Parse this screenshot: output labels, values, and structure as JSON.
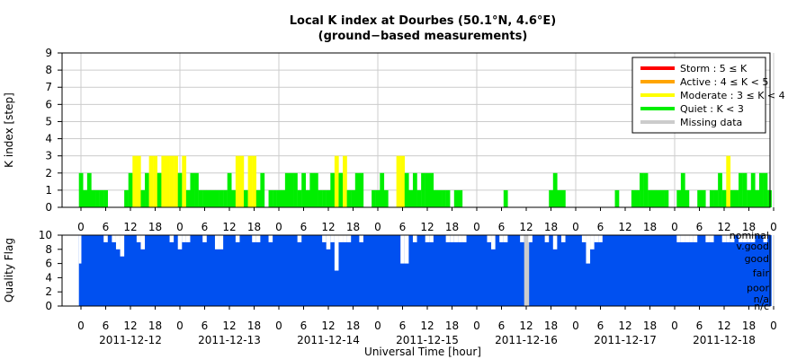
{
  "chart_data": [
    {
      "type": "bar",
      "title": "Local K index at Dourbes (50.1°N, 4.6°E)",
      "subtitle": "(ground−based measurements)",
      "ylabel": "K index [step]",
      "ylim": [
        0,
        9
      ],
      "yticks": [
        "0",
        "1",
        "2",
        "3",
        "4",
        "5",
        "6",
        "7",
        "8",
        "9"
      ],
      "x_tick_labels": [
        "0",
        "6",
        "12",
        "18",
        "0",
        "6",
        "12",
        "18",
        "0",
        "6",
        "12",
        "18",
        "0",
        "6",
        "12",
        "18",
        "0",
        "6",
        "12",
        "18",
        "0",
        "6",
        "12",
        "18",
        "0",
        "6",
        "12",
        "18",
        "0"
      ],
      "grid": true,
      "legend_position": "top-right",
      "legend": [
        {
          "label": "Storm : 5 ≤ K",
          "color": "#ff0000"
        },
        {
          "label": "Active : 4 ≤ K < 5",
          "color": "#ffa500"
        },
        {
          "label": "Moderate : 3 ≤ K < 4",
          "color": "#ffff00"
        },
        {
          "label": "Quiet : K < 3",
          "color": "#00ee00"
        },
        {
          "label": "Missing data",
          "color": "#cccccc"
        }
      ],
      "bar_width_hours": 1,
      "start_date": "2011-12-12",
      "hourly_values": [
        2,
        1,
        2,
        1,
        1,
        1,
        1,
        0,
        0,
        0,
        0,
        1,
        2,
        3,
        3,
        1,
        2,
        3,
        3,
        2,
        3,
        3,
        3,
        3,
        2,
        3,
        1,
        2,
        2,
        1,
        1,
        1,
        1,
        1,
        1,
        1,
        2,
        1,
        3,
        3,
        1,
        3,
        3,
        1,
        2,
        0,
        1,
        1,
        1,
        1,
        2,
        2,
        2,
        1,
        2,
        1,
        2,
        2,
        1,
        1,
        1,
        2,
        3,
        2,
        3,
        1,
        1,
        2,
        2,
        0,
        0,
        1,
        1,
        2,
        1,
        0,
        0,
        3,
        3,
        2,
        1,
        2,
        1,
        2,
        2,
        2,
        1,
        1,
        1,
        1,
        0,
        1,
        1,
        0,
        0,
        0,
        0,
        0,
        0,
        0,
        0,
        0,
        0,
        1,
        0,
        0,
        0,
        0,
        0,
        0,
        0,
        0,
        0,
        0,
        1,
        2,
        1,
        1,
        0,
        0,
        0,
        0,
        0,
        0,
        0,
        0,
        0,
        0,
        0,
        0,
        1,
        0,
        0,
        0,
        1,
        1,
        2,
        2,
        1,
        1,
        1,
        1,
        1,
        0,
        0,
        1,
        2,
        1,
        0,
        0,
        1,
        1,
        0,
        1,
        1,
        2,
        1,
        3,
        1,
        1,
        2,
        2,
        1,
        2,
        1,
        2,
        2,
        1
      ]
    },
    {
      "type": "area",
      "ylabel": "Quality Flag",
      "ylim": [
        0,
        10
      ],
      "yticks": [
        "0",
        "2",
        "4",
        "6",
        "8",
        "10"
      ],
      "category_labels": [
        "nominal",
        "v.good",
        "good",
        "fair",
        "poor",
        "n/a",
        "n/c"
      ],
      "fill_color": "#0050f0",
      "missing_color": "#cccccc",
      "xlabel": "Universal Time [hour]",
      "date_labels": [
        "2011-12-12",
        "2011-12-13",
        "2011-12-14",
        "2011-12-15",
        "2011-12-16",
        "2011-12-17",
        "2011-12-18"
      ],
      "x_tick_labels": [
        "0",
        "6",
        "12",
        "18",
        "0",
        "6",
        "12",
        "18",
        "0",
        "6",
        "12",
        "18",
        "0",
        "6",
        "12",
        "18",
        "0",
        "6",
        "12",
        "18",
        "0",
        "6",
        "12",
        "18",
        "0",
        "6",
        "12",
        "18",
        "0"
      ],
      "dips": [
        {
          "day": 0,
          "hour": 0,
          "value": 6,
          "width_hours": 0.6
        },
        {
          "day": 0,
          "hour": 6,
          "value": 9
        },
        {
          "day": 0,
          "hour": 8,
          "value": 9
        },
        {
          "day": 0,
          "hour": 9,
          "value": 8
        },
        {
          "day": 0,
          "hour": 10,
          "value": 7
        },
        {
          "day": 0,
          "hour": 14,
          "value": 9
        },
        {
          "day": 0,
          "hour": 15,
          "value": 8
        },
        {
          "day": 0,
          "hour": 22,
          "value": 9
        },
        {
          "day": 1,
          "hour": 0,
          "value": 8
        },
        {
          "day": 1,
          "hour": 1,
          "value": 9
        },
        {
          "day": 1,
          "hour": 2,
          "value": 9
        },
        {
          "day": 1,
          "hour": 6,
          "value": 9
        },
        {
          "day": 1,
          "hour": 9,
          "value": 8
        },
        {
          "day": 1,
          "hour": 10,
          "value": 8
        },
        {
          "day": 1,
          "hour": 14,
          "value": 9
        },
        {
          "day": 1,
          "hour": 18,
          "value": 9
        },
        {
          "day": 1,
          "hour": 19,
          "value": 9
        },
        {
          "day": 1,
          "hour": 22,
          "value": 9
        },
        {
          "day": 2,
          "hour": 5,
          "value": 9
        },
        {
          "day": 2,
          "hour": 11,
          "value": 9
        },
        {
          "day": 2,
          "hour": 12,
          "value": 8
        },
        {
          "day": 2,
          "hour": 13,
          "value": 9
        },
        {
          "day": 2,
          "hour": 14,
          "value": 5
        },
        {
          "day": 2,
          "hour": 15,
          "value": 9
        },
        {
          "day": 2,
          "hour": 16,
          "value": 9
        },
        {
          "day": 2,
          "hour": 17,
          "value": 9
        },
        {
          "day": 2,
          "hour": 20,
          "value": 9
        },
        {
          "day": 3,
          "hour": 6,
          "value": 6
        },
        {
          "day": 3,
          "hour": 7,
          "value": 6
        },
        {
          "day": 3,
          "hour": 9,
          "value": 9
        },
        {
          "day": 3,
          "hour": 12,
          "value": 9
        },
        {
          "day": 3,
          "hour": 13,
          "value": 9
        },
        {
          "day": 3,
          "hour": 17,
          "value": 9
        },
        {
          "day": 3,
          "hour": 18,
          "value": 9
        },
        {
          "day": 3,
          "hour": 19,
          "value": 9
        },
        {
          "day": 3,
          "hour": 20,
          "value": 9
        },
        {
          "day": 3,
          "hour": 21,
          "value": 9
        },
        {
          "day": 4,
          "hour": 3,
          "value": 9
        },
        {
          "day": 4,
          "hour": 4,
          "value": 8
        },
        {
          "day": 4,
          "hour": 6,
          "value": 9
        },
        {
          "day": 4,
          "hour": 7,
          "value": 9
        },
        {
          "day": 4,
          "hour": 11,
          "value": 9
        },
        {
          "day": 4,
          "hour": 12,
          "value": 0,
          "width_hours": 1.2
        },
        {
          "day": 4,
          "hour": 13,
          "value": 9
        },
        {
          "day": 4,
          "hour": 17,
          "value": 9
        },
        {
          "day": 4,
          "hour": 19,
          "value": 8
        },
        {
          "day": 4,
          "hour": 21,
          "value": 9
        },
        {
          "day": 5,
          "hour": 2,
          "value": 9
        },
        {
          "day": 5,
          "hour": 3,
          "value": 6
        },
        {
          "day": 5,
          "hour": 4,
          "value": 8
        },
        {
          "day": 5,
          "hour": 5,
          "value": 9
        },
        {
          "day": 5,
          "hour": 6,
          "value": 9
        },
        {
          "day": 6,
          "hour": 1,
          "value": 9
        },
        {
          "day": 6,
          "hour": 2,
          "value": 9
        },
        {
          "day": 6,
          "hour": 3,
          "value": 9
        },
        {
          "day": 6,
          "hour": 4,
          "value": 9
        },
        {
          "day": 6,
          "hour": 5,
          "value": 9
        },
        {
          "day": 6,
          "hour": 8,
          "value": 9
        },
        {
          "day": 6,
          "hour": 9,
          "value": 9
        },
        {
          "day": 6,
          "hour": 12,
          "value": 9
        },
        {
          "day": 6,
          "hour": 13,
          "value": 9
        },
        {
          "day": 6,
          "hour": 14,
          "value": 9
        },
        {
          "day": 6,
          "hour": 16,
          "value": 9
        },
        {
          "day": 6,
          "hour": 17,
          "value": 9
        },
        {
          "day": 6,
          "hour": 18,
          "value": 9
        },
        {
          "day": 6,
          "hour": 19,
          "value": 9
        },
        {
          "day": 6,
          "hour": 22,
          "value": 9
        }
      ]
    }
  ]
}
